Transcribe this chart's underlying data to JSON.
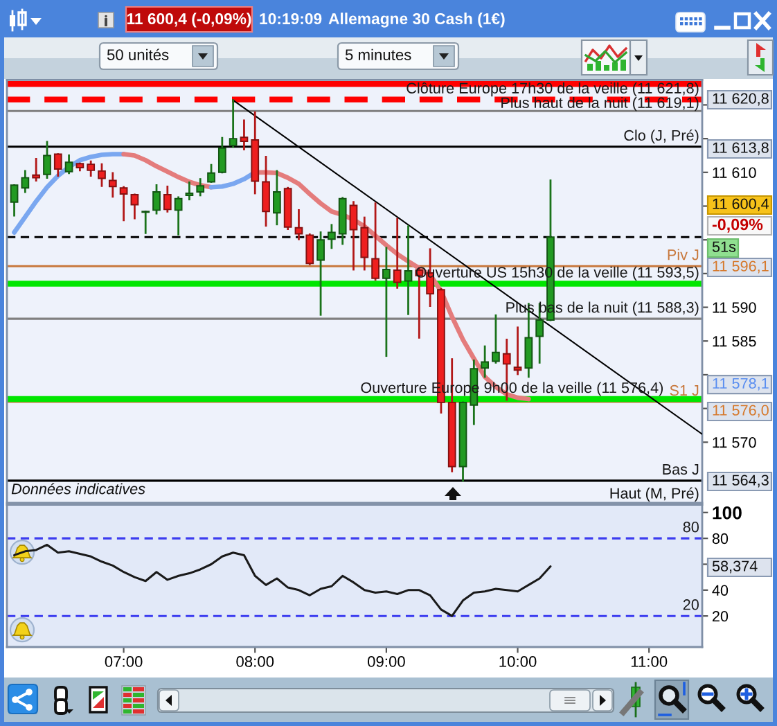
{
  "chart_data": [
    {
      "type": "candlestick",
      "title": "Allemagne 30 Cash (1€)",
      "subtitle": "11 600,4 (-0,09%)",
      "x": [
        6.1667,
        6.25,
        6.3333,
        6.4167,
        6.5,
        6.5833,
        6.6667,
        6.75,
        6.8333,
        6.9167,
        7,
        7.0833,
        7.1667,
        7.25,
        7.3333,
        7.4167,
        7.5,
        7.5833,
        7.6667,
        7.75,
        7.8333,
        7.9167,
        8,
        8.0833,
        8.1667,
        8.25,
        8.3333,
        8.4167,
        8.5,
        8.5833,
        8.6667,
        8.75,
        8.8333,
        8.9167,
        9,
        9.0833,
        9.1667,
        9.25,
        9.3333,
        9.4167,
        9.5,
        9.5833,
        9.6667,
        9.75,
        9.8333,
        9.9167,
        10,
        10.0833,
        10.1667,
        10.25
      ],
      "ohlc": [
        [
          11605.6,
          11608.1,
          11603.6,
          11608.1
        ],
        [
          11607.7,
          11610.2,
          11607.1,
          11609.2
        ],
        [
          11609.6,
          11612.0,
          11608.8,
          11609.2
        ],
        [
          11609.7,
          11614.5,
          11609.2,
          11612.5
        ],
        [
          11612.7,
          11612.7,
          11609.5,
          11610.5
        ],
        [
          11610.1,
          11612.5,
          11609.9,
          11611.5
        ],
        [
          11611.3,
          11611.3,
          11610.3,
          11610.7
        ],
        [
          11611.2,
          11611.6,
          11609.5,
          11610.3
        ],
        [
          11610.2,
          11611.2,
          11608.0,
          11609.1
        ],
        [
          11608.8,
          11609.9,
          11606.4,
          11607.9
        ],
        [
          11607.7,
          11607.8,
          11602.9,
          11606.8
        ],
        [
          11606.7,
          11606.7,
          11603.2,
          11605.2
        ],
        [
          11604.1,
          11604.2,
          11601.0,
          11604.2
        ],
        [
          11604.4,
          11608.1,
          11603.9,
          11607.1
        ],
        [
          11606.7,
          11607.9,
          11604.2,
          11604.5
        ],
        [
          11604.4,
          11606.3,
          11600.8,
          11606.1
        ],
        [
          11606.6,
          11608.5,
          11606.0,
          11606.9
        ],
        [
          11607.1,
          11609.0,
          11606.6,
          11608.0
        ],
        [
          11608.6,
          11611.1,
          11608.6,
          11609.9
        ],
        [
          11610.0,
          11615.1,
          11610.0,
          11613.6
        ],
        [
          11614.0,
          11620.7,
          11613.8,
          11615.0
        ],
        [
          11615.2,
          11617.7,
          11613.4,
          11614.6
        ],
        [
          11614.8,
          11618.9,
          11606.9,
          11608.7
        ],
        [
          11608.6,
          11612.3,
          11602.1,
          11604.2
        ],
        [
          11604.0,
          11610.2,
          11602.3,
          11607.1
        ],
        [
          11607.6,
          11607.7,
          11601.6,
          11601.9
        ],
        [
          11601.8,
          11604.4,
          11600.1,
          11600.9
        ],
        [
          11600.7,
          11600.8,
          11596.4,
          11596.5
        ],
        [
          11597.0,
          11601.1,
          11588.9,
          11600.0
        ],
        [
          11600.1,
          11602.2,
          11598.8,
          11601.1
        ],
        [
          11600.9,
          11606.2,
          11599.4,
          11606.1
        ],
        [
          11605.1,
          11605.6,
          11595.6,
          11601.5
        ],
        [
          11601.8,
          11603.3,
          11595.6,
          11597.4
        ],
        [
          11597.2,
          11605.4,
          11594.1,
          11594.3
        ],
        [
          11594.3,
          11598.8,
          11582.8,
          11595.6
        ],
        [
          11595.5,
          11603.1,
          11592.9,
          11593.7
        ],
        [
          11593.9,
          11602.0,
          11589.0,
          11595.4
        ],
        [
          11595.5,
          11595.8,
          11585.5,
          11594.7
        ],
        [
          11595.1,
          11598.6,
          11590.2,
          11592.0
        ],
        [
          11592.6,
          11592.7,
          11574.4,
          11575.9
        ],
        [
          11575.9,
          11582.3,
          11565.7,
          11566.4
        ],
        [
          11566.4,
          11575.9,
          11564.3,
          11575.9
        ],
        [
          11575.5,
          11582.1,
          11572.7,
          11580.9
        ],
        [
          11581.0,
          11584.2,
          11579.7,
          11581.9
        ],
        [
          11582.0,
          11588.8,
          11581.8,
          11583.3
        ],
        [
          11583.1,
          11585.2,
          11576.3,
          11581.6
        ],
        [
          11581.1,
          11587.0,
          11580.1,
          11580.7
        ],
        [
          11581.0,
          11590.5,
          11579.7,
          11585.5
        ],
        [
          11585.7,
          11590.5,
          11581.8,
          11588.1
        ],
        [
          11588.1,
          11608.8,
          11588.1,
          11600.4
        ]
      ],
      "colors": [
        "#229a22",
        "#229a22",
        "#ee1f1f",
        "#229a22",
        "#ee1f1f",
        "#229a22",
        "#ee1f1f",
        "#ee1f1f",
        "#ee1f1f",
        "#ee1f1f",
        "#ee1f1f",
        "#ee1f1f",
        "#229a22",
        "#229a22",
        "#ee1f1f",
        "#229a22",
        "#229a22",
        "#229a22",
        "#229a22",
        "#229a22",
        "#229a22",
        "#ee1f1f",
        "#ee1f1f",
        "#ee1f1f",
        "#229a22",
        "#ee1f1f",
        "#ee1f1f",
        "#ee1f1f",
        "#229a22",
        "#229a22",
        "#229a22",
        "#ee1f1f",
        "#ee1f1f",
        "#ee1f1f",
        "#229a22",
        "#ee1f1f",
        "#229a22",
        "#ee1f1f",
        "#ee1f1f",
        "#ee1f1f",
        "#ee1f1f",
        "#229a22",
        "#229a22",
        "#229a22",
        "#229a22",
        "#ee1f1f",
        "#ee1f1f",
        "#229a22",
        "#229a22",
        "#229a22"
      ],
      "series": [
        {
          "type": "line",
          "color": "#7aa7f0",
          "x": [
            6.1667,
            6.25,
            6.3333,
            6.4167,
            6.5,
            6.5833,
            6.6667,
            6.75,
            6.8333,
            6.9167,
            7
          ],
          "values": [
            11601.1,
            11603.4,
            11605.7,
            11607.8,
            11609.5,
            11610.8,
            11611.8,
            11612.3,
            11612.6,
            11612.7,
            11612.7
          ]
        },
        {
          "type": "line",
          "color": "#e47c7c",
          "x": [
            7,
            7.0833,
            7.1667,
            7.25,
            7.3333,
            7.4167,
            7.5,
            7.5833,
            7.6667
          ],
          "values": [
            11612.7,
            11612.5,
            11611.8,
            11610.9,
            11610.1,
            11609.3,
            11608.6,
            11608.1,
            11607.8
          ]
        },
        {
          "type": "line",
          "color": "#7aa7f0",
          "x": [
            7.6667,
            7.75,
            7.8333,
            7.9167,
            8
          ],
          "values": [
            11607.8,
            11607.9,
            11608.3,
            11609.0,
            11610.0
          ]
        },
        {
          "type": "line",
          "color": "#e47c7c",
          "x": [
            8,
            8.0833,
            8.1667,
            8.25,
            8.3333,
            8.4167,
            8.5,
            8.5833,
            8.6667,
            8.75,
            8.8333,
            8.9167,
            9,
            9.0833,
            9.1667,
            9.25,
            9.3333,
            9.4167,
            9.5,
            9.5833,
            9.6667,
            9.75,
            9.8333,
            9.9167,
            10,
            10.0833
          ],
          "values": [
            11610.0,
            11610.0,
            11609.9,
            11609.2,
            11608.3,
            11606.8,
            11605.4,
            11604.2,
            11603.7,
            11603.0,
            11602.0,
            11600.6,
            11599.2,
            11597.9,
            11596.8,
            11595.8,
            11594.8,
            11592.4,
            11588.6,
            11585.2,
            11582.4,
            11579.7,
            11578.2,
            11577.1,
            11576.6,
            11576.4
          ]
        },
        {
          "type": "line",
          "color": "#000000",
          "x": [
            7.8333,
            11.405
          ],
          "values": [
            11620.7,
            11571.2
          ]
        }
      ],
      "xlim": [
        6.111,
        11.405
      ],
      "ylim": [
        11561.0,
        11623.7
      ],
      "yticks": [
        {
          "value": 11570,
          "label": "11 570"
        },
        {
          "value": 11575,
          "label": null
        },
        {
          "value": 11580,
          "label": null
        },
        {
          "value": 11585,
          "label": "11 585"
        },
        {
          "value": 11590,
          "label": "11 590"
        },
        {
          "value": 11595,
          "label": null
        },
        {
          "value": 11600,
          "label": null
        },
        {
          "value": 11605,
          "label": null
        },
        {
          "value": 11610,
          "label": "11 610"
        },
        {
          "value": 11615,
          "label": null
        },
        {
          "value": 11620,
          "label": null
        }
      ],
      "tick_labels": "y",
      "ref_lines": [
        {
          "axis": "y",
          "value": 11623.1,
          "color": "#ff0000"
        },
        {
          "axis": "y",
          "value": 11620.8,
          "color": "#ff0000",
          "line_style": "dashed",
          "label": "Clôture Europe 17h30 de la veille (11 621,8)"
        },
        {
          "axis": "y",
          "value": 11619.1,
          "color": "#808080",
          "label": "Plus haut de la nuit (11 619,1)"
        },
        {
          "axis": "y",
          "value": 11613.8,
          "color": "#000000",
          "label": "Clo (J, Pré)"
        },
        {
          "axis": "y",
          "value": 11600.4,
          "color": "#000000",
          "line_style": "dashed"
        },
        {
          "axis": "y",
          "value": 11596.1,
          "color": "#c8783c",
          "label": "Piv J"
        },
        {
          "axis": "y",
          "value": 11593.5,
          "color": "#00e600",
          "label": "Ouverture US 15h30 de la veille (11 593,5)"
        },
        {
          "axis": "y",
          "value": 11588.3,
          "color": "#808080",
          "label": "Plus bas de la nuit (11 588,3)"
        },
        {
          "axis": "y",
          "value": 11576.0,
          "color": "#c8783c",
          "label": "S1 J"
        },
        {
          "axis": "y",
          "value": 11576.4,
          "color": "#00e600",
          "label": "Ouverture Europe 9h00 de la veille (11 576,4)"
        },
        {
          "axis": "y",
          "value": 11564.3,
          "color": "#000000",
          "label": "Bas J"
        }
      ],
      "annotations": [
        "10:19:09",
        "50 unités",
        "5 minutes",
        "Données indicatives",
        "Haut (M, Pré)",
        "11 620,8",
        "11 613,8",
        "11 600,4",
        "-0,09%",
        "51s",
        "11 596,1",
        "11 578,1",
        "11 576,0",
        "11 564,3"
      ]
    },
    {
      "type": "line",
      "x": [
        6.1667,
        6.25,
        6.3333,
        6.4167,
        6.5,
        6.5833,
        6.6667,
        6.75,
        6.8333,
        6.9167,
        7,
        7.0833,
        7.1667,
        7.25,
        7.3333,
        7.4167,
        7.5,
        7.5833,
        7.6667,
        7.75,
        7.8333,
        7.9167,
        8,
        8.0833,
        8.1667,
        8.25,
        8.3333,
        8.4167,
        8.5,
        8.5833,
        8.6667,
        8.75,
        8.8333,
        8.9167,
        9,
        9.0833,
        9.1667,
        9.25,
        9.3333,
        9.4167,
        9.5,
        9.5833,
        9.6667,
        9.75,
        9.8333,
        9.9167,
        10,
        10.0833,
        10.1667,
        10.25
      ],
      "series": [
        {
          "color": "#1a1a1a",
          "values": [
            67,
            70,
            71,
            75,
            69,
            70,
            68,
            66,
            62,
            59,
            54,
            50,
            47,
            54,
            48,
            51,
            53,
            56,
            60,
            66,
            69,
            67,
            51,
            44,
            49,
            42,
            40,
            36,
            41,
            43,
            51,
            46,
            40,
            38,
            39,
            37,
            40,
            40,
            36,
            25,
            20,
            32,
            38,
            39,
            41,
            40,
            39,
            44,
            49,
            58.374
          ]
        }
      ],
      "xlim": [
        6.111,
        11.405
      ],
      "xticks": [
        {
          "value": 7,
          "label": "07:00"
        },
        {
          "value": 8,
          "label": "08:00"
        },
        {
          "value": 9,
          "label": "09:00"
        },
        {
          "value": 10,
          "label": "10:00"
        },
        {
          "value": 11,
          "label": "11:00"
        }
      ],
      "ylim": [
        -4,
        106
      ],
      "yticks": [
        100,
        80,
        {
          "value": 60,
          "label": null
        },
        40,
        20
      ],
      "ref_lines": [
        {
          "axis": "y",
          "value": 80,
          "color": "#3c3cf0",
          "line_style": "dashed",
          "label": "80"
        },
        {
          "axis": "y",
          "value": 20,
          "color": "#3c3cf0",
          "line_style": "dashed",
          "label": "20"
        }
      ],
      "annotations": [
        "58,374"
      ]
    }
  ]
}
